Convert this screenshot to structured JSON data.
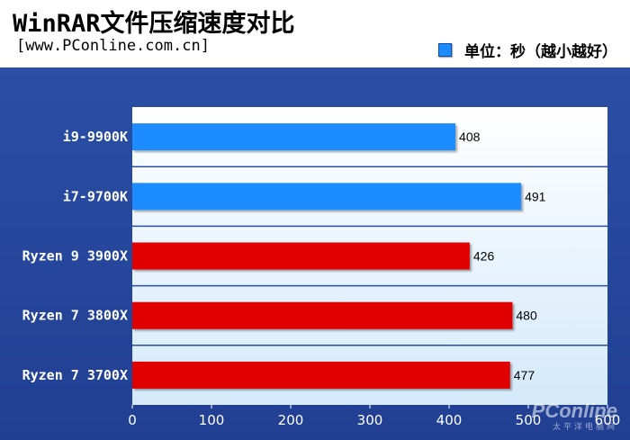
{
  "header": {
    "title": "WinRAR文件压缩速度对比",
    "subtitle": "[www.PConline.com.cn]"
  },
  "legend": {
    "label": "单位：秒（越小越好）",
    "color": "#1e8cff"
  },
  "watermark": {
    "brand": "PConline",
    "sub": "太平洋电脑网"
  },
  "chart_data": {
    "type": "bar",
    "orientation": "horizontal",
    "title": "WinRAR文件压缩速度对比",
    "categories": [
      "i9-9900K",
      "i7-9700K",
      "Ryzen 9 3900X",
      "Ryzen 7 3800X",
      "Ryzen 7 3700X"
    ],
    "series": [
      {
        "name": "单位：秒（越小越好）",
        "values": [
          408,
          491,
          426,
          480,
          477
        ]
      }
    ],
    "bar_colors": [
      "#1e8cff",
      "#1e8cff",
      "#e00000",
      "#e00000",
      "#e00000"
    ],
    "data_labels": [
      "408",
      "491",
      "426",
      "480",
      "477"
    ],
    "xlim": [
      0,
      600
    ],
    "xticks": [
      0,
      100,
      200,
      300,
      400,
      500,
      600
    ],
    "xtick_labels": [
      "0",
      "100",
      "200",
      "300",
      "400",
      "500",
      "600"
    ],
    "grid": false,
    "legend_position": "top-right"
  }
}
